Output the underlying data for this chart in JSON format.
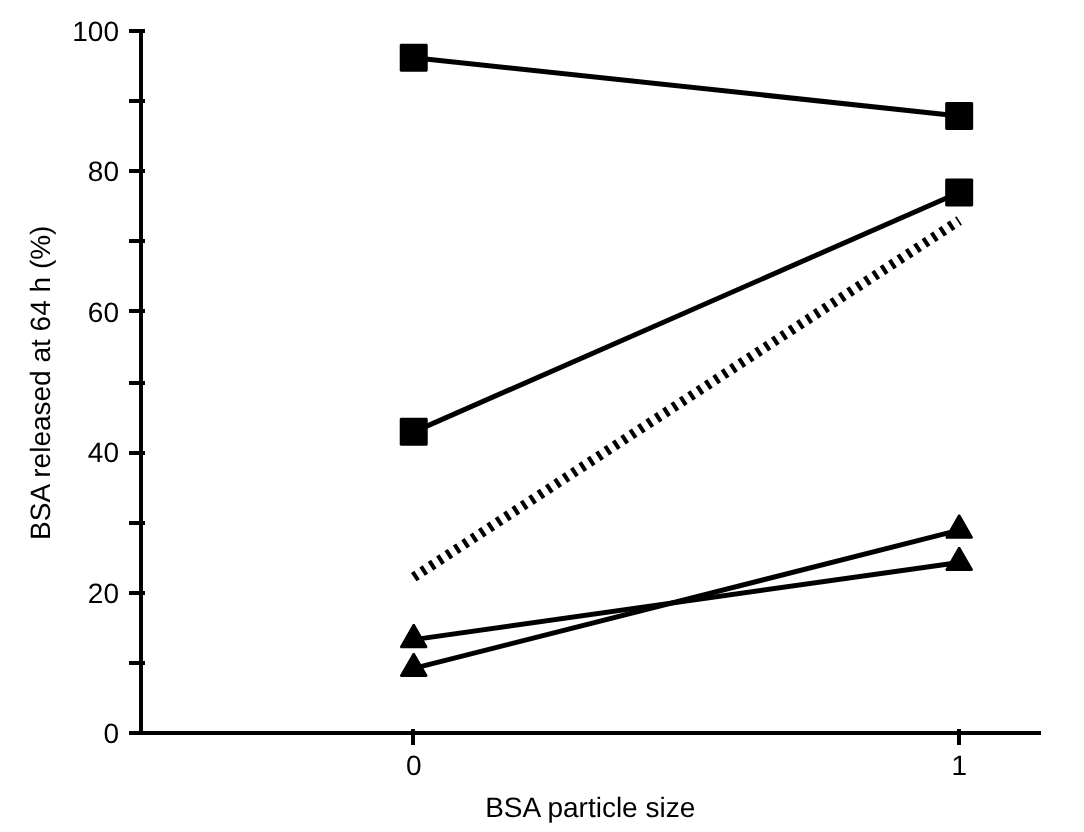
{
  "chart_data": {
    "type": "line",
    "xlabel": "BSA particle size",
    "ylabel": "BSA released at 64 h (%)",
    "x": [
      0,
      1
    ],
    "xlim": [
      -0.5,
      1.15
    ],
    "xticks": [
      0,
      1
    ],
    "ylim": [
      0,
      100
    ],
    "yticks": [
      0,
      {
        "value": 10,
        "label": null
      },
      20,
      {
        "value": 30,
        "label": null
      },
      40,
      {
        "value": 50,
        "label": null
      },
      60,
      {
        "value": 70,
        "label": null
      },
      80,
      {
        "value": 90,
        "label": null
      },
      100
    ],
    "grid": false,
    "series": [
      {
        "color": "#000000",
        "values": [
          96.2,
          87.9
        ],
        "marker": "square",
        "line_style": "solid"
      },
      {
        "color": "#000000",
        "values": [
          42.9,
          77.0
        ],
        "marker": "square",
        "line_style": "solid"
      },
      {
        "color": "#000000",
        "values": [
          22.2,
          73.0
        ],
        "marker": "none",
        "line_style": "dotted"
      },
      {
        "color": "#000000",
        "values": [
          13.3,
          24.3
        ],
        "marker": "triangle",
        "line_style": "solid"
      },
      {
        "color": "#000000",
        "values": [
          9.2,
          28.9
        ],
        "marker": "triangle",
        "line_style": "solid"
      }
    ]
  }
}
